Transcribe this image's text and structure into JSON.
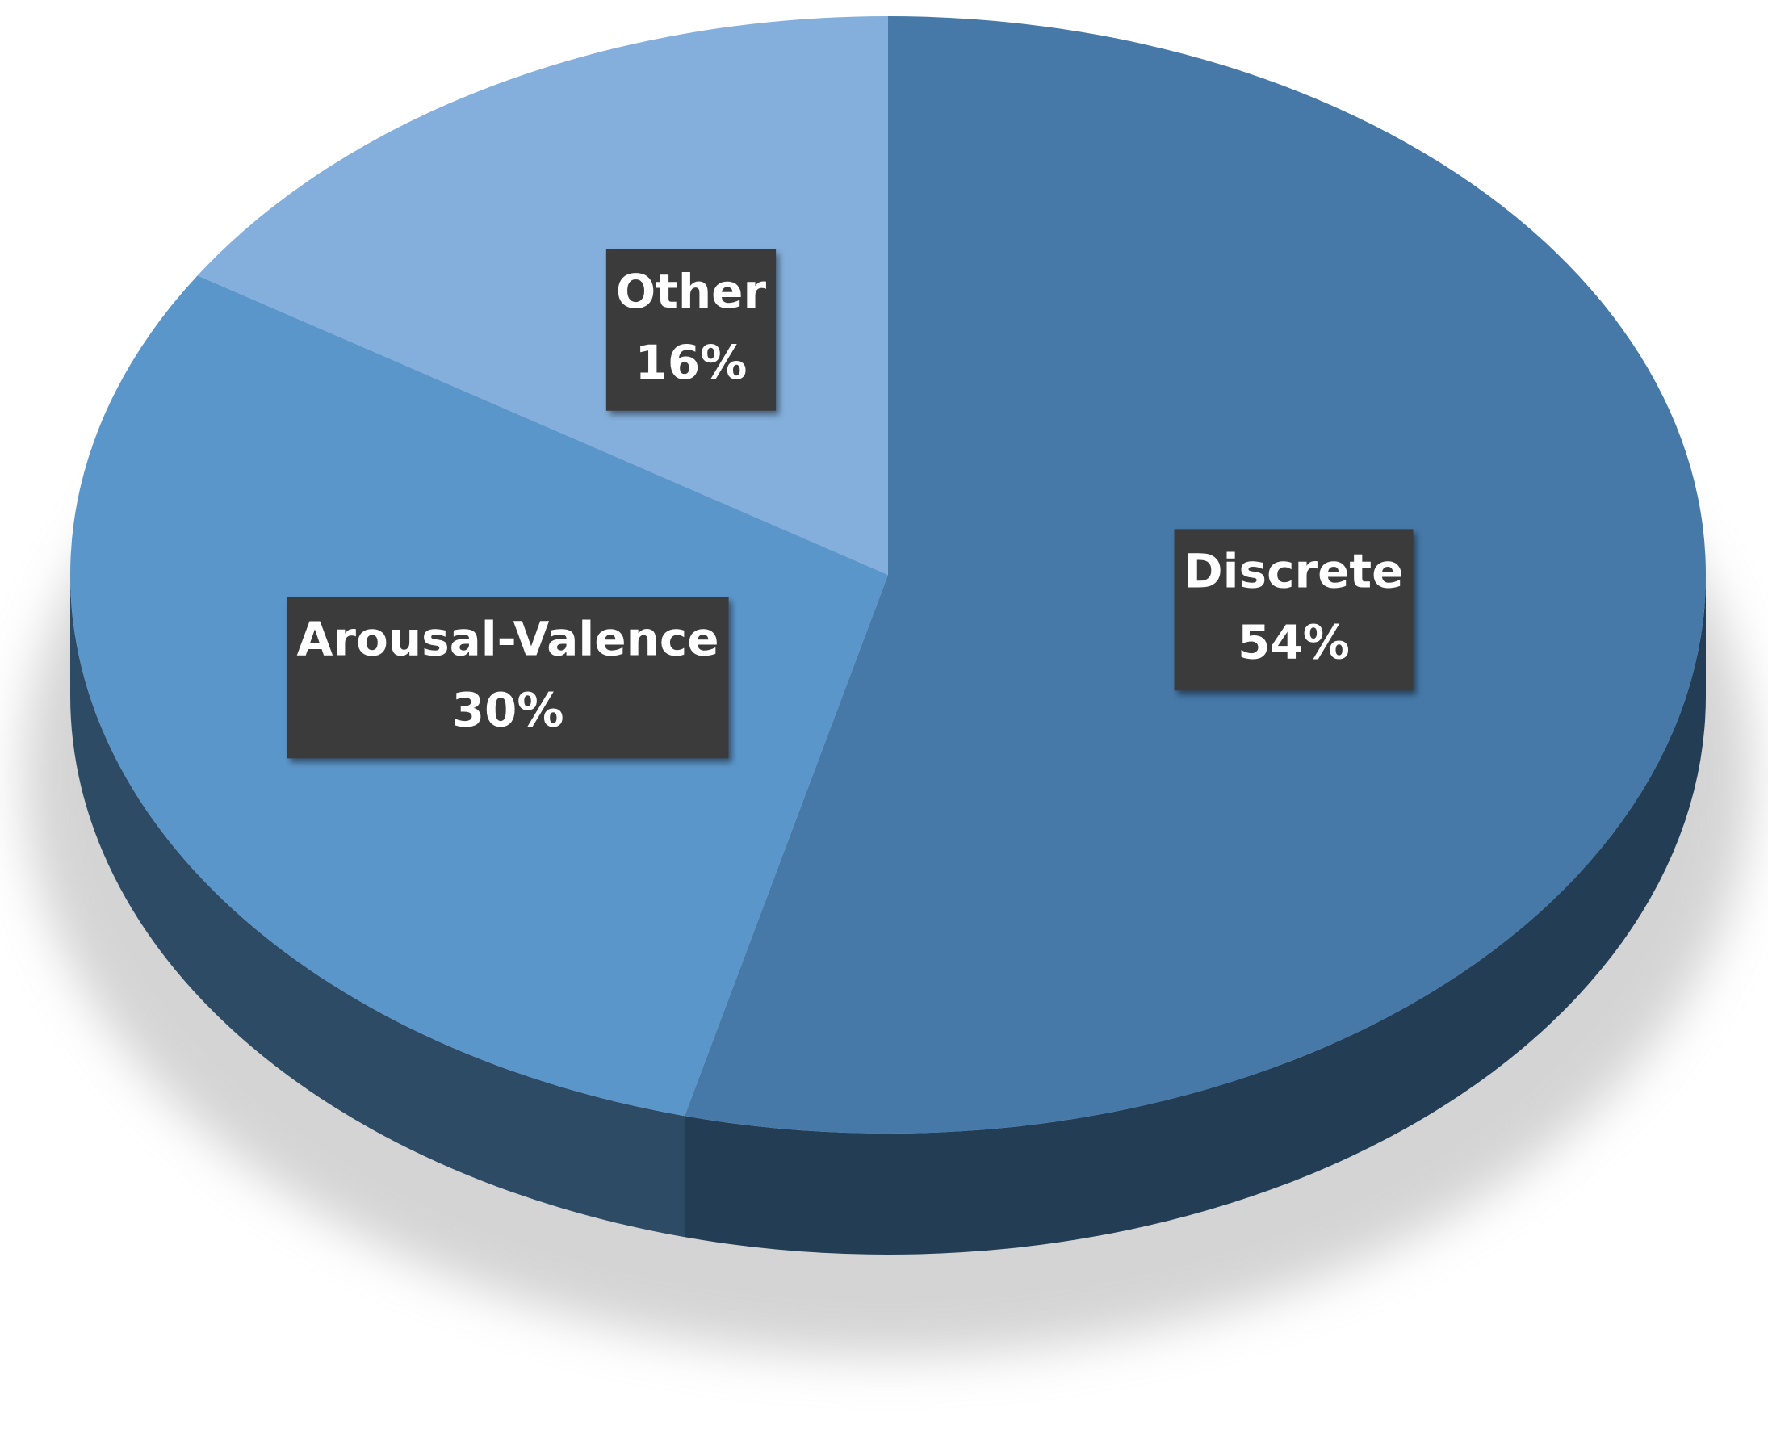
{
  "chart_data": {
    "type": "pie",
    "categories": [
      "Discrete",
      "Arousal-Valence",
      "Other"
    ],
    "values": [
      54,
      30,
      16
    ],
    "value_labels": [
      "54%",
      "30%",
      "16%"
    ],
    "colors": [
      "#4679a8",
      "#5b96cb",
      "#84afdc"
    ]
  }
}
